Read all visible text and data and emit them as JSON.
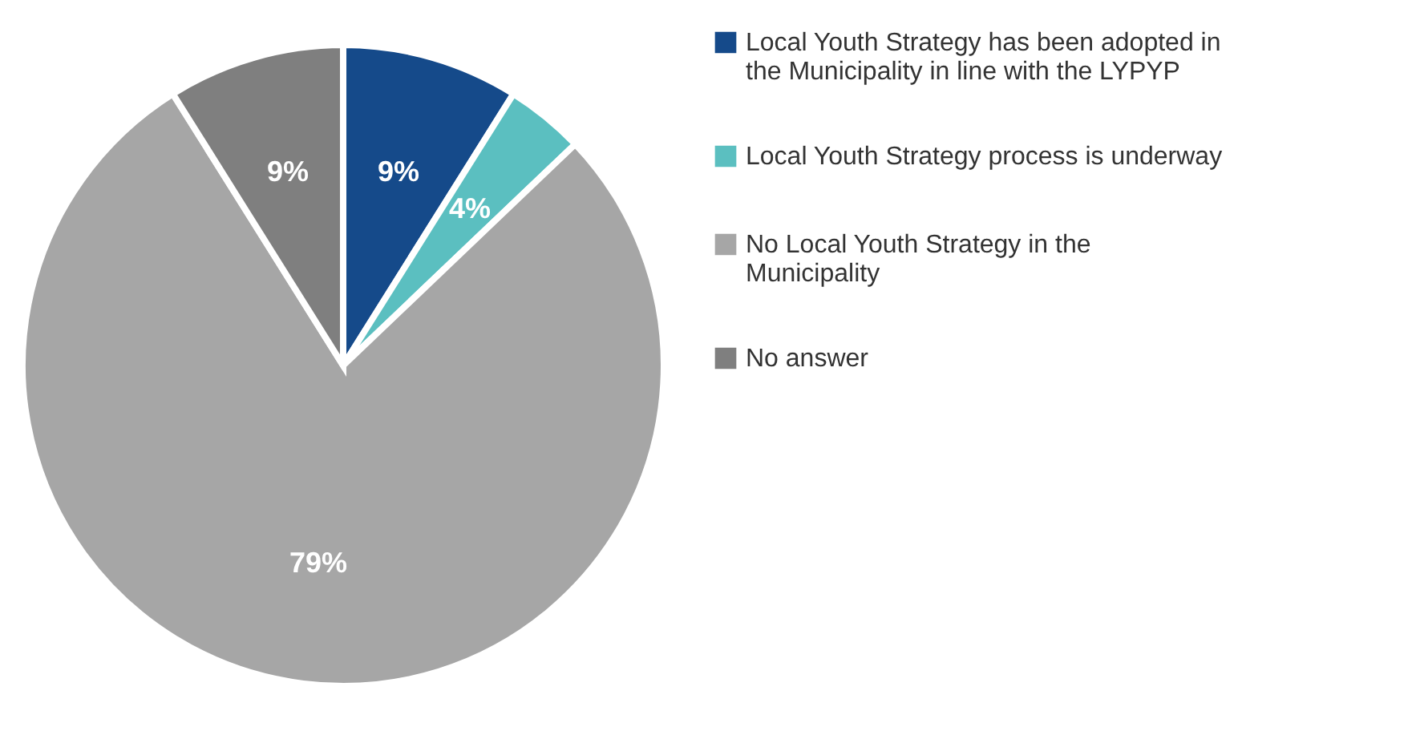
{
  "chart_data": {
    "type": "pie",
    "categories": [
      "Local Youth Strategy has been adopted in the Municipality in line with the LYPYP",
      "Local Youth Strategy process is underway",
      "No Local Youth Strategy in the Municipality",
      "No answer"
    ],
    "values": [
      9,
      4,
      79,
      9
    ],
    "colors": [
      "#154a8a",
      "#5bbfc0",
      "#a6a6a6",
      "#7f7f7f"
    ],
    "value_labels": [
      "9%",
      "4%",
      "79%",
      "9%"
    ],
    "legend": "right"
  }
}
